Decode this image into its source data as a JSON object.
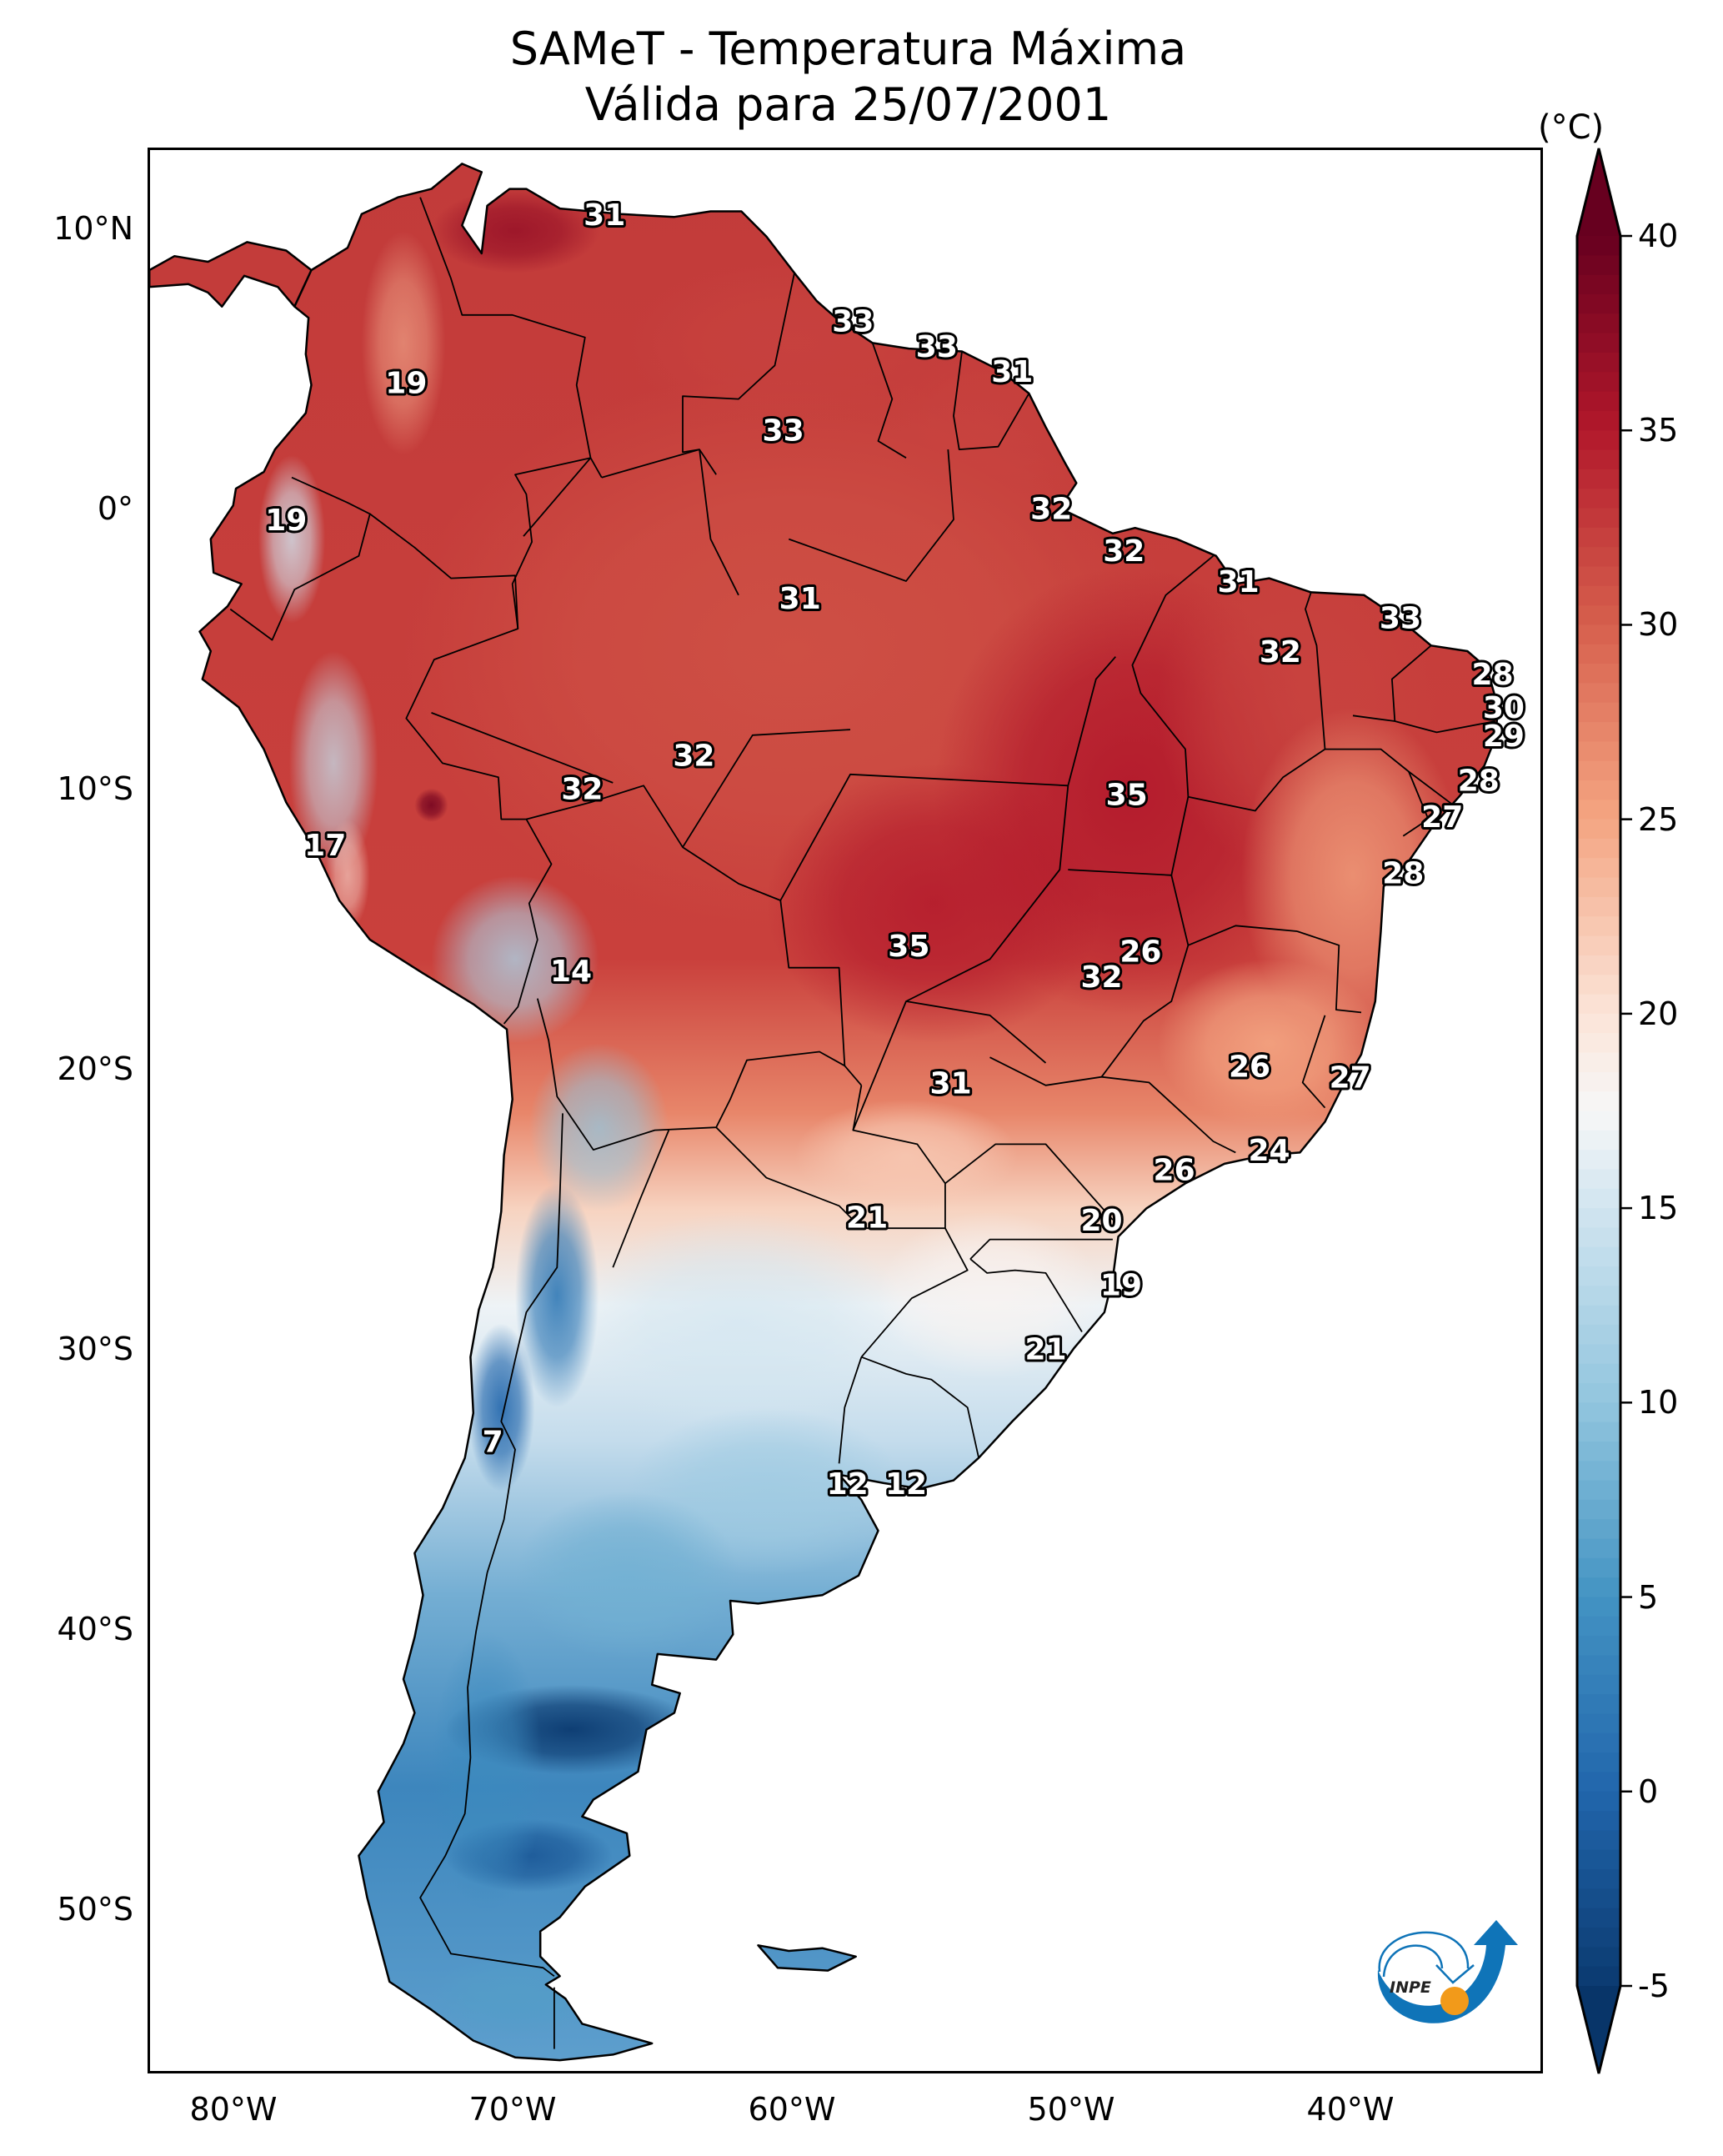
{
  "title": {
    "line1": "SAMeT - Temperatura Máxima",
    "line2": "Válida para 25/07/2001"
  },
  "chart_data": {
    "type": "heatmap",
    "title": "SAMeT - Temperatura Máxima",
    "subtitle": "Válida para 25/07/2001",
    "xlabel": "",
    "ylabel": "",
    "extent": {
      "lon": [
        -83.1,
        -33.1
      ],
      "lat": [
        -55.9,
        13.0
      ]
    },
    "lat_ticks": [
      {
        "value": 10,
        "label": "10°N"
      },
      {
        "value": 0,
        "label": "0°"
      },
      {
        "value": -10,
        "label": "10°S"
      },
      {
        "value": -20,
        "label": "20°S"
      },
      {
        "value": -30,
        "label": "30°S"
      },
      {
        "value": -40,
        "label": "40°S"
      },
      {
        "value": -50,
        "label": "50°S"
      }
    ],
    "lon_ticks": [
      {
        "value": -80,
        "label": "80°W"
      },
      {
        "value": -70,
        "label": "70°W"
      },
      {
        "value": -60,
        "label": "60°W"
      },
      {
        "value": -50,
        "label": "50°W"
      },
      {
        "value": -40,
        "label": "40°W"
      }
    ],
    "grid": false,
    "colorbar": {
      "unit_label": "(°C)",
      "range": [
        -5,
        40
      ],
      "extend": "both",
      "colormap": "RdBu_r",
      "placement": "right",
      "ticks": [
        {
          "value": 40,
          "label": "40"
        },
        {
          "value": 35,
          "label": "35"
        },
        {
          "value": 30,
          "label": "30"
        },
        {
          "value": 25,
          "label": "25"
        },
        {
          "value": 20,
          "label": "20"
        },
        {
          "value": 15,
          "label": "15"
        },
        {
          "value": 10,
          "label": "10"
        },
        {
          "value": 5,
          "label": "5"
        },
        {
          "value": 0,
          "label": "0"
        },
        {
          "value": -5,
          "label": "-5"
        }
      ],
      "stops": [
        {
          "value": -7,
          "color": "#053061"
        },
        {
          "value": -5,
          "color": "#0b3a70"
        },
        {
          "value": 0,
          "color": "#2166ac"
        },
        {
          "value": 5,
          "color": "#4393c3"
        },
        {
          "value": 10,
          "color": "#92c5de"
        },
        {
          "value": 15,
          "color": "#d1e5f0"
        },
        {
          "value": 17.5,
          "color": "#f7f7f7"
        },
        {
          "value": 20,
          "color": "#fbe4d8"
        },
        {
          "value": 25,
          "color": "#f4a582"
        },
        {
          "value": 30,
          "color": "#d6604d"
        },
        {
          "value": 35,
          "color": "#b2182b"
        },
        {
          "value": 40,
          "color": "#67001f"
        }
      ]
    },
    "station_labels": [
      {
        "lon": -66.8,
        "lat": 10.6,
        "value": 31
      },
      {
        "lon": -57.9,
        "lat": 6.8,
        "value": 33
      },
      {
        "lon": -54.9,
        "lat": 5.9,
        "value": 33
      },
      {
        "lon": -52.2,
        "lat": 5.0,
        "value": 31
      },
      {
        "lon": -73.9,
        "lat": 4.6,
        "value": 19
      },
      {
        "lon": -60.4,
        "lat": 2.9,
        "value": 33
      },
      {
        "lon": -78.2,
        "lat": -0.3,
        "value": 19
      },
      {
        "lon": -50.8,
        "lat": 0.1,
        "value": 32
      },
      {
        "lon": -48.2,
        "lat": -1.4,
        "value": 32
      },
      {
        "lon": -44.1,
        "lat": -2.5,
        "value": 31
      },
      {
        "lon": -59.8,
        "lat": -3.1,
        "value": 31
      },
      {
        "lon": -38.3,
        "lat": -3.8,
        "value": 33
      },
      {
        "lon": -42.6,
        "lat": -5.0,
        "value": 32
      },
      {
        "lon": -35.0,
        "lat": -5.8,
        "value": 28
      },
      {
        "lon": -34.6,
        "lat": -7.0,
        "value": 30
      },
      {
        "lon": -34.6,
        "lat": -8.0,
        "value": 29
      },
      {
        "lon": -63.6,
        "lat": -8.7,
        "value": 32
      },
      {
        "lon": -35.5,
        "lat": -9.6,
        "value": 28
      },
      {
        "lon": -67.6,
        "lat": -9.9,
        "value": 32
      },
      {
        "lon": -48.1,
        "lat": -10.1,
        "value": 35
      },
      {
        "lon": -36.8,
        "lat": -10.9,
        "value": 27
      },
      {
        "lon": -76.8,
        "lat": -11.9,
        "value": 17
      },
      {
        "lon": -38.2,
        "lat": -12.9,
        "value": 28
      },
      {
        "lon": -55.9,
        "lat": -15.5,
        "value": 35
      },
      {
        "lon": -47.6,
        "lat": -15.7,
        "value": 26
      },
      {
        "lon": -68.0,
        "lat": -16.4,
        "value": 14
      },
      {
        "lon": -49.0,
        "lat": -16.6,
        "value": 32
      },
      {
        "lon": -43.7,
        "lat": -19.8,
        "value": 26
      },
      {
        "lon": -40.1,
        "lat": -20.2,
        "value": 27
      },
      {
        "lon": -54.4,
        "lat": -20.4,
        "value": 31
      },
      {
        "lon": -43.0,
        "lat": -22.8,
        "value": 24
      },
      {
        "lon": -46.4,
        "lat": -23.5,
        "value": 26
      },
      {
        "lon": -57.4,
        "lat": -25.2,
        "value": 21
      },
      {
        "lon": -49.0,
        "lat": -25.3,
        "value": 20
      },
      {
        "lon": -48.3,
        "lat": -27.6,
        "value": 19
      },
      {
        "lon": -51.0,
        "lat": -29.9,
        "value": 21
      },
      {
        "lon": -70.8,
        "lat": -33.2,
        "value": 7
      },
      {
        "lon": -58.1,
        "lat": -34.7,
        "value": 12
      },
      {
        "lon": -56.0,
        "lat": -34.7,
        "value": 12
      }
    ],
    "regions": [
      {
        "name": "north-coast-venezuela-guianas",
        "temp": 32
      },
      {
        "name": "amazon-basin",
        "temp": 31
      },
      {
        "name": "central-brazil",
        "temp": 34
      },
      {
        "name": "northeast-brazil",
        "temp": 28
      },
      {
        "name": "southeast-brazil",
        "temp": 25
      },
      {
        "name": "southern-brazil-uruguay",
        "temp": 18
      },
      {
        "name": "chaco-north-argentina",
        "temp": 21
      },
      {
        "name": "pampas",
        "temp": 13
      },
      {
        "name": "andes-peru-bolivia",
        "temp": 13
      },
      {
        "name": "andes-chile-argentina",
        "temp": 2
      },
      {
        "name": "patagonia",
        "temp": 5
      },
      {
        "name": "patagonia-cold-core",
        "temp": 0
      }
    ]
  },
  "logo": {
    "text": "INPE",
    "icon": "inpe-logo-icon",
    "blue": "#0f74b8",
    "orange": "#f29a1a"
  }
}
